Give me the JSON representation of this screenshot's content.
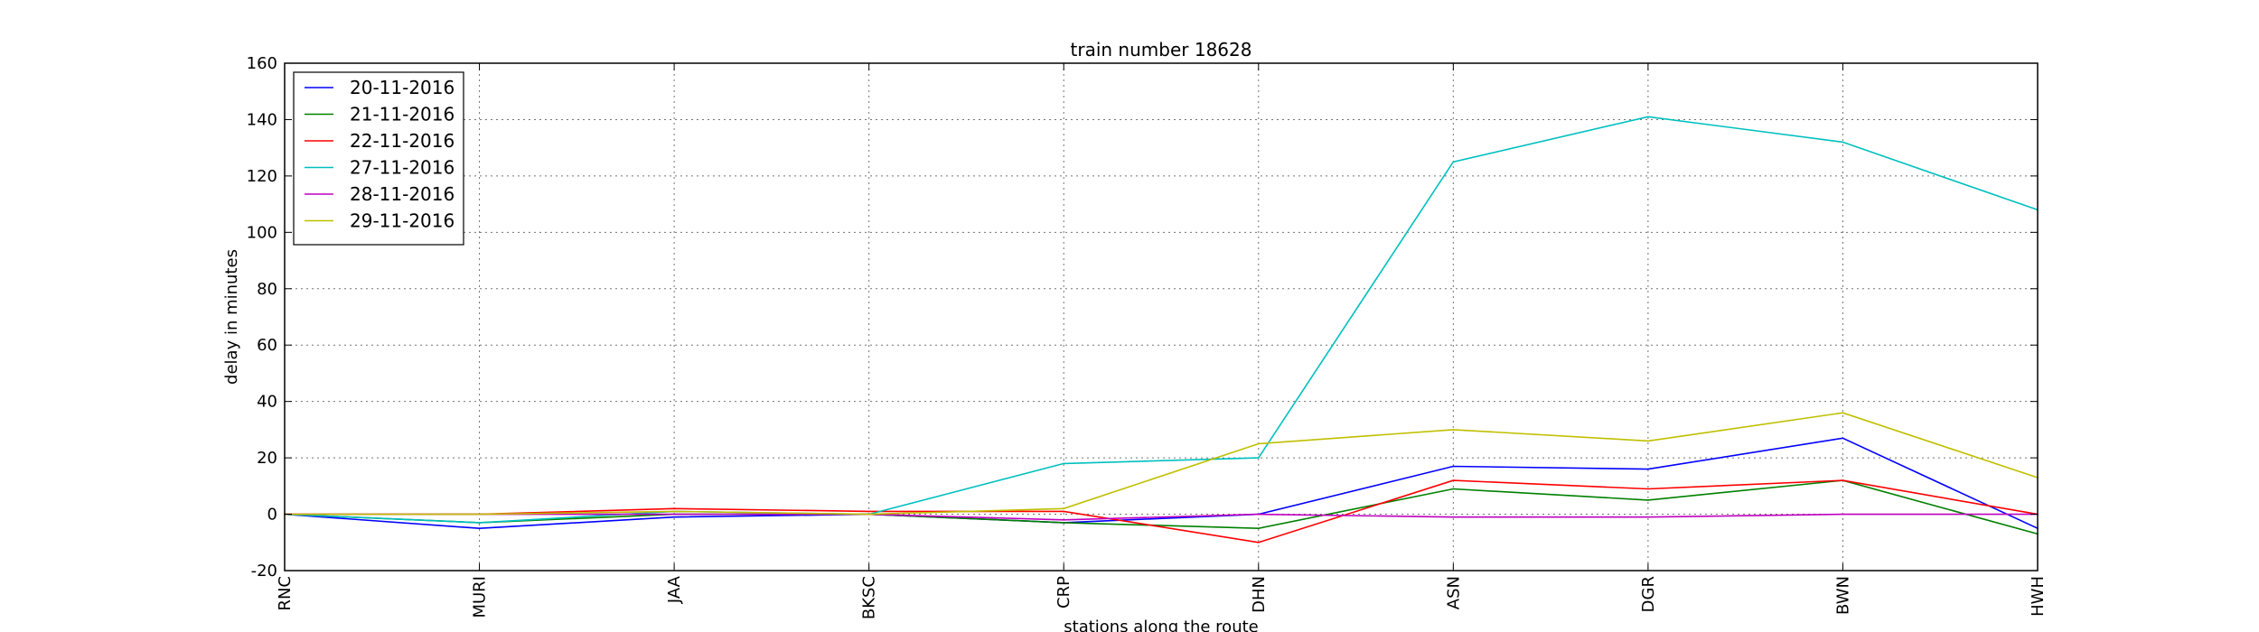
{
  "chart_data": {
    "type": "line",
    "title": "train number 18628",
    "xlabel": "stations along the route",
    "ylabel": "delay in minutes",
    "categories": [
      "RNC",
      "MURI",
      "JAA",
      "BKSC",
      "CRP",
      "DHN",
      "ASN",
      "DGR",
      "BWN",
      "HWH"
    ],
    "ylim": [
      -20,
      160
    ],
    "yticks": [
      -20,
      0,
      20,
      40,
      60,
      80,
      100,
      120,
      140,
      160
    ],
    "grid": true,
    "legend_position": "top-left",
    "series": [
      {
        "name": "20-11-2016",
        "color": "#0000ff",
        "values": [
          0,
          -5,
          -1,
          0,
          -3,
          0,
          17,
          16,
          27,
          -5
        ]
      },
      {
        "name": "21-11-2016",
        "color": "#008000",
        "values": [
          0,
          -3,
          0,
          0,
          -3,
          -5,
          9,
          5,
          12,
          -7
        ]
      },
      {
        "name": "22-11-2016",
        "color": "#ff0000",
        "values": [
          0,
          0,
          2,
          1,
          1,
          -10,
          12,
          9,
          12,
          0
        ]
      },
      {
        "name": "27-11-2016",
        "color": "#00bfbf",
        "values": [
          0,
          -3,
          1,
          0,
          18,
          20,
          125,
          141,
          132,
          108
        ]
      },
      {
        "name": "28-11-2016",
        "color": "#bf00bf",
        "values": [
          0,
          0,
          0,
          0,
          -2,
          0,
          -1,
          -1,
          0,
          0
        ]
      },
      {
        "name": "29-11-2016",
        "color": "#bfbf00",
        "values": [
          0,
          0,
          1,
          0,
          2,
          25,
          30,
          26,
          36,
          13
        ]
      }
    ]
  }
}
